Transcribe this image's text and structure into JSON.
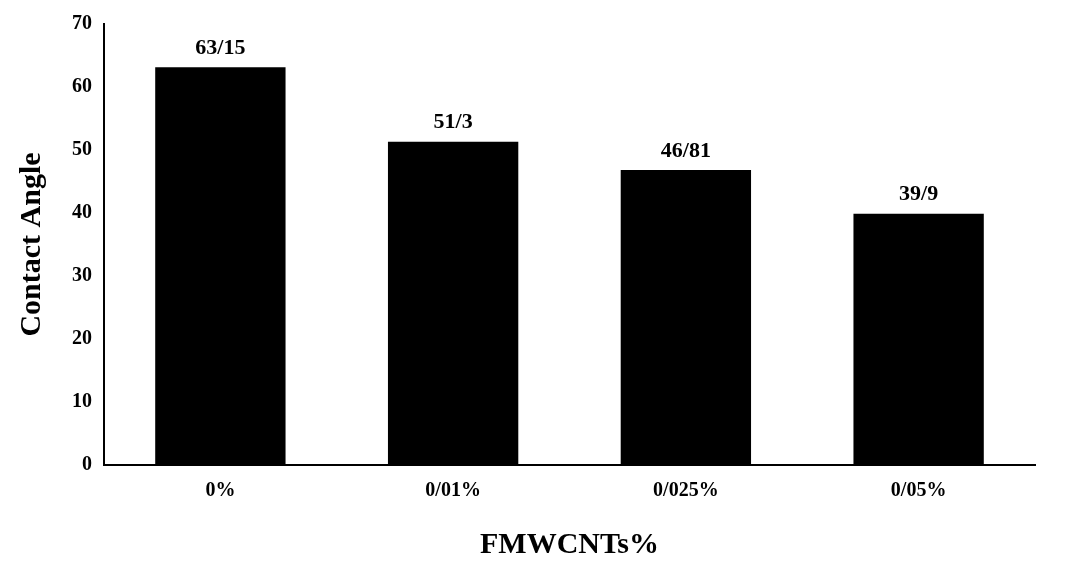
{
  "chart_data": {
    "type": "bar",
    "categories": [
      "0%",
      "0/01%",
      "0/025%",
      "0/05%"
    ],
    "values": [
      63.15,
      51.3,
      46.81,
      39.9
    ],
    "value_labels": [
      "63/15",
      "51/3",
      "46/81",
      "39/9"
    ],
    "data_labels": true,
    "color": "#000000",
    "x_label": "FMWCNTs%",
    "y_label": "Contact Angle",
    "ylim": [
      0,
      70
    ],
    "yticks": [
      0,
      10,
      20,
      30,
      40,
      50,
      60,
      70
    ],
    "grid": false
  }
}
